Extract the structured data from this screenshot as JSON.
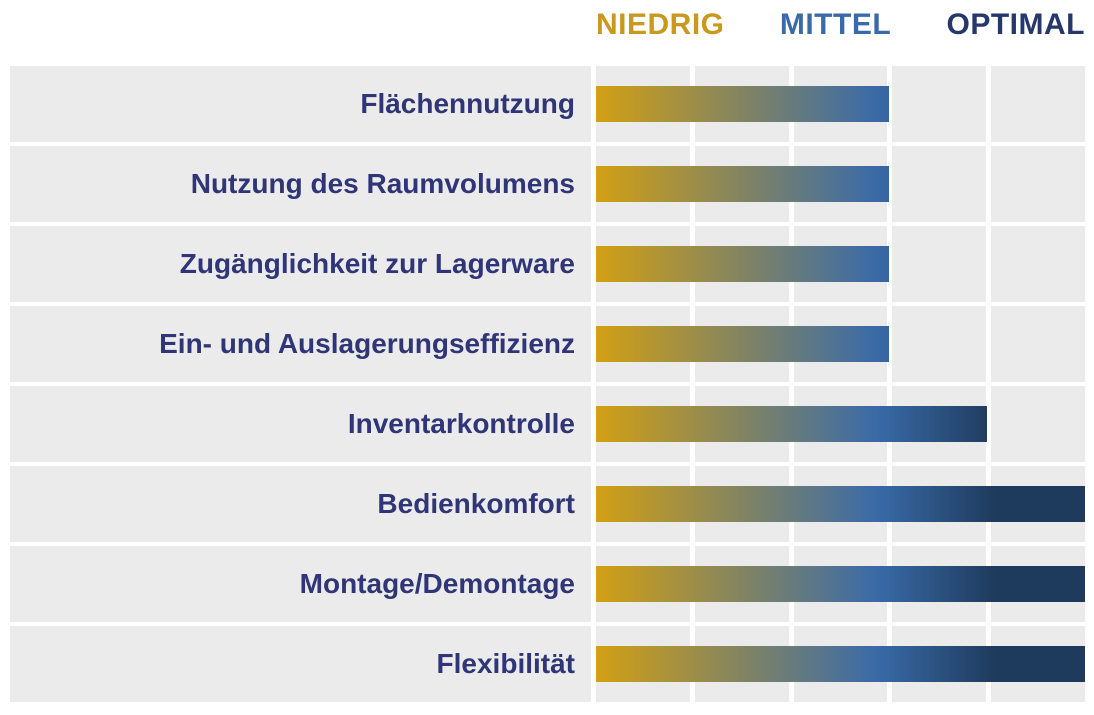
{
  "chart_data": {
    "type": "bar",
    "orientation": "horizontal",
    "title": "",
    "xlabel": "",
    "ylabel": "",
    "scale_labels": [
      "NIEDRIG",
      "MITTEL",
      "OPTIMAL"
    ],
    "categories": [
      "Flächennutzung",
      "Nutzung des Raumvolumens",
      "Zugänglichkeit zur Lagerware",
      "Ein- und Auslagerungseffizienz",
      "Inventarkontrolle",
      "Bedienkomfort",
      "Montage/Demontage",
      "Flexibilität"
    ],
    "values": [
      3,
      3,
      3,
      3,
      4,
      5,
      5,
      5
    ],
    "value_scale": {
      "min": 0,
      "max": 5,
      "unit": "grid cells"
    },
    "ratings": [
      "mittel",
      "mittel",
      "mittel",
      "mittel",
      "mittel-optimal",
      "optimal",
      "optimal",
      "optimal"
    ],
    "legend_position": "top",
    "grid": true,
    "grid_columns": 5,
    "colors": {
      "bar_low": "#D2A014",
      "bar_mid": "#3A6BA8",
      "bar_high": "#1E3A5C",
      "header_low": "#C8991E",
      "header_mid": "#3A6BA8",
      "header_high": "#25376B",
      "label_text": "#2F3576",
      "band_background": "#EBEBEB",
      "page_background": "#FFFFFF"
    },
    "gradient_stops": {
      "mid_position_pct": 57,
      "high_position_pct": 82
    }
  }
}
